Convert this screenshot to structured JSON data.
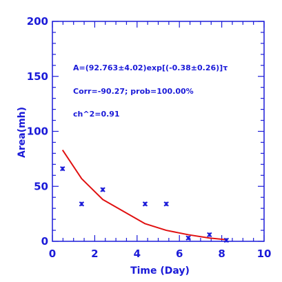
{
  "chart_data": {
    "type": "scatter",
    "title": "",
    "xlabel": "Time (Day)",
    "ylabel": "Area(mh)",
    "xlim": [
      0,
      10
    ],
    "ylim": [
      0,
      200
    ],
    "x_ticks": [
      0,
      2,
      4,
      6,
      8,
      10
    ],
    "y_ticks": [
      0,
      50,
      100,
      150,
      200
    ],
    "grid": false,
    "annotations": [
      "A=(92.763±4.02)exp[(-0.38±0.26)]τ",
      "Corr=-90.27;   prob=100.00%",
      "ch^2=0.91"
    ],
    "series": [
      {
        "type": "scatter",
        "marker": "x",
        "color": "#1a1ad8",
        "x": [
          0.48,
          1.38,
          2.38,
          4.38,
          5.38,
          6.42,
          7.42,
          8.22
        ],
        "y": [
          66,
          34,
          47,
          34,
          34,
          3,
          6,
          1
        ]
      },
      {
        "type": "line",
        "color": "#e01010",
        "x": [
          0.48,
          1.38,
          2.38,
          4.38,
          5.38,
          6.42,
          7.42,
          8.22
        ],
        "y": [
          83,
          57,
          38,
          16,
          10,
          6,
          3,
          1.5
        ]
      }
    ]
  }
}
